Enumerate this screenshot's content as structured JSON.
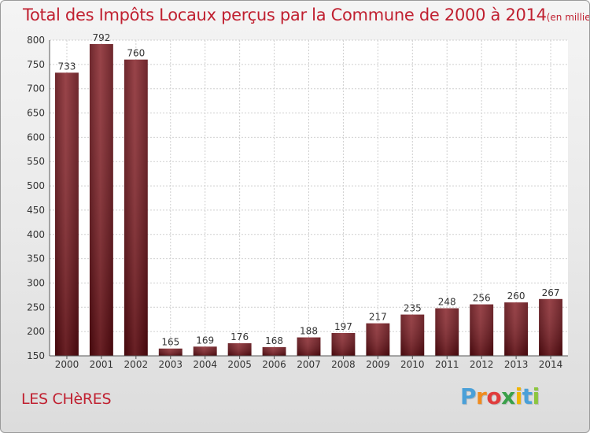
{
  "chart_data": {
    "type": "bar",
    "title": "Total des Impôts Locaux perçus par la Commune de 2000 à 2014",
    "subtitle": "(en milliers d'€)",
    "categories": [
      "2000",
      "2001",
      "2002",
      "2003",
      "2004",
      "2005",
      "2006",
      "2007",
      "2008",
      "2009",
      "2010",
      "2011",
      "2012",
      "2013",
      "2014"
    ],
    "values": [
      733,
      792,
      760,
      165,
      169,
      176,
      168,
      188,
      197,
      217,
      235,
      248,
      256,
      260,
      267
    ],
    "ylim": [
      150,
      800
    ],
    "yticks": [
      150,
      200,
      250,
      300,
      350,
      400,
      450,
      500,
      550,
      600,
      650,
      700,
      750,
      800
    ],
    "grid": true,
    "bar_color": "#6e0f16"
  },
  "commune": "LES CHèRES",
  "logo": {
    "letters": [
      "P",
      "r",
      "o",
      "x",
      "i",
      "t",
      "i"
    ],
    "colors": [
      "#4aa0d8",
      "#f08c1e",
      "#e03c3c",
      "#3aa04a",
      "#f0b400",
      "#4aa0d8",
      "#8cc63e"
    ]
  }
}
